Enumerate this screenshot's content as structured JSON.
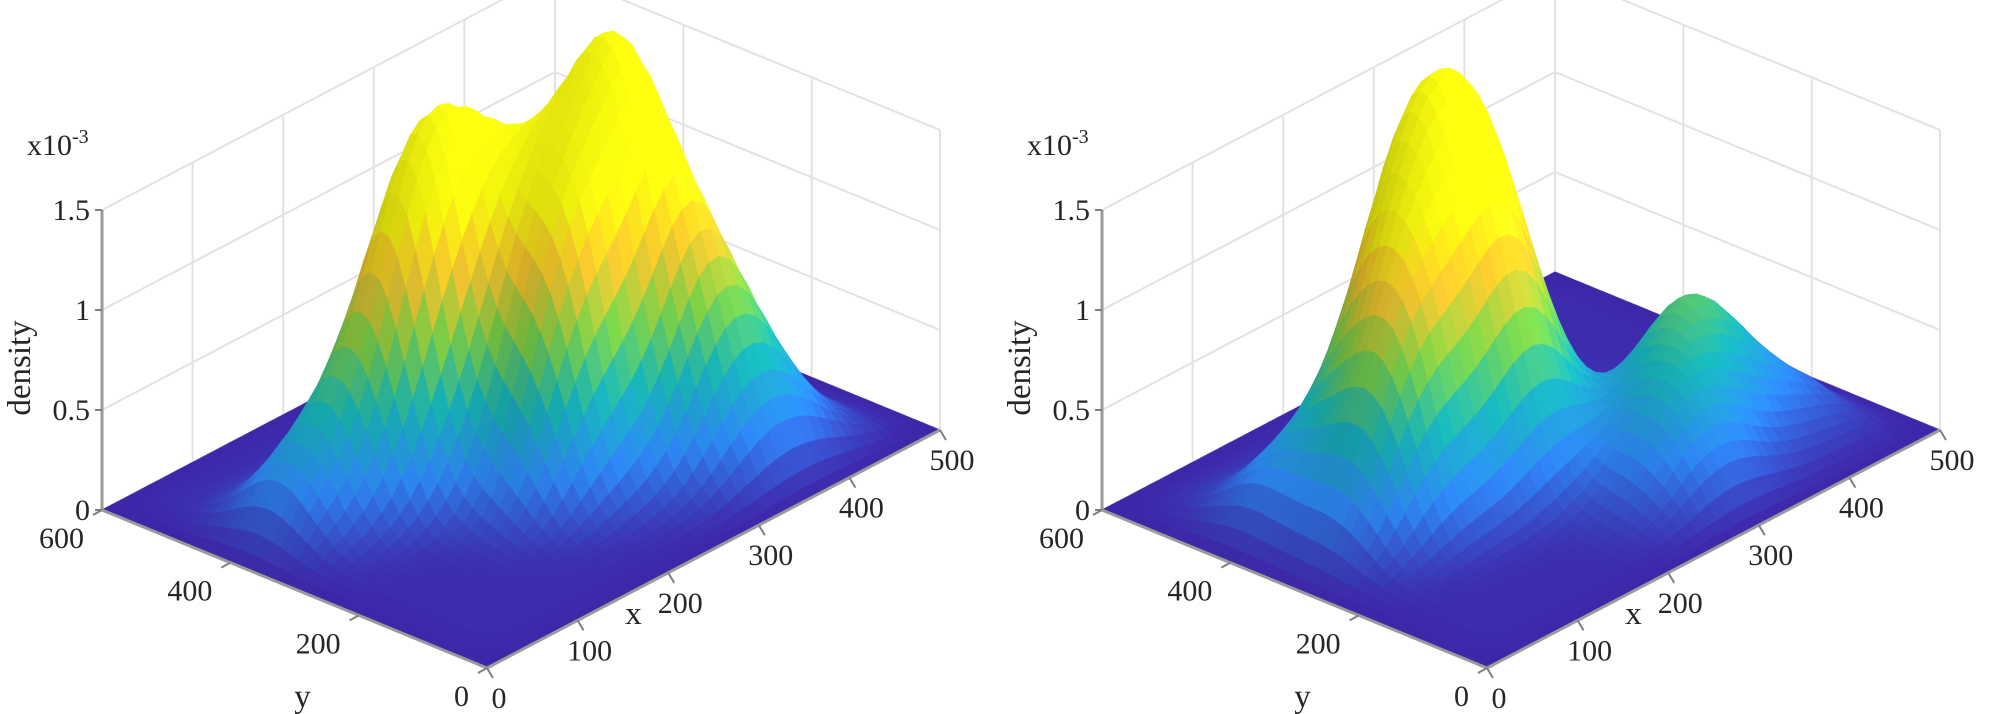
{
  "chart_data": [
    {
      "type": "surface",
      "title": "",
      "xlabel": "x",
      "ylabel": "y",
      "zlabel": "density",
      "z_exponent": "x10",
      "z_exponent_power": "-3",
      "xlim": [
        0,
        500
      ],
      "ylim": [
        0,
        600
      ],
      "zlim": [
        0,
        1.5
      ],
      "x_ticks": [
        "0",
        "100",
        "200",
        "300",
        "400",
        "500"
      ],
      "y_ticks": [
        "0",
        "200",
        "400",
        "600"
      ],
      "z_ticks": [
        "0",
        "0.5",
        "1",
        "1.5"
      ],
      "grid": true,
      "colormap": [
        "#3e26a8",
        "#2e87f5",
        "#17b5b8",
        "#7bd148",
        "#f9c62e",
        "#f9fb0e"
      ],
      "peaks": [
        {
          "x": 170,
          "y": 360,
          "z": 1.38
        },
        {
          "x": 240,
          "y": 340,
          "z": 1.08
        },
        {
          "x": 240,
          "y": 220,
          "z": 1.06
        },
        {
          "x": 320,
          "y": 280,
          "z": 1.18
        },
        {
          "x": 330,
          "y": 220,
          "z": 0.85
        },
        {
          "x": 340,
          "y": 150,
          "z": 0.62
        },
        {
          "x": 380,
          "y": 110,
          "z": 0.32
        },
        {
          "x": 80,
          "y": 390,
          "z": 0.38
        }
      ]
    },
    {
      "type": "surface",
      "title": "",
      "xlabel": "x",
      "ylabel": "y",
      "zlabel": "density",
      "z_exponent": "x10",
      "z_exponent_power": "-3",
      "xlim": [
        0,
        500
      ],
      "ylim": [
        0,
        600
      ],
      "zlim": [
        0,
        1.5
      ],
      "x_ticks": [
        "0",
        "100",
        "200",
        "300",
        "400",
        "500"
      ],
      "y_ticks": [
        "0",
        "200",
        "400",
        "600"
      ],
      "z_ticks": [
        "0",
        "0.5",
        "1",
        "1.5"
      ],
      "grid": true,
      "colormap": [
        "#3e26a8",
        "#2e87f5",
        "#17b5b8",
        "#7bd148",
        "#f9c62e",
        "#f9fb0e"
      ],
      "peaks": [
        {
          "x": 180,
          "y": 380,
          "z": 1.36
        },
        {
          "x": 260,
          "y": 380,
          "z": 1.2
        },
        {
          "x": 220,
          "y": 280,
          "z": 0.95
        },
        {
          "x": 120,
          "y": 300,
          "z": 0.85
        },
        {
          "x": 360,
          "y": 200,
          "z": 0.62
        },
        {
          "x": 300,
          "y": 120,
          "z": 0.45
        },
        {
          "x": 80,
          "y": 420,
          "z": 0.3
        },
        {
          "x": 420,
          "y": 140,
          "z": 0.18
        }
      ]
    }
  ]
}
